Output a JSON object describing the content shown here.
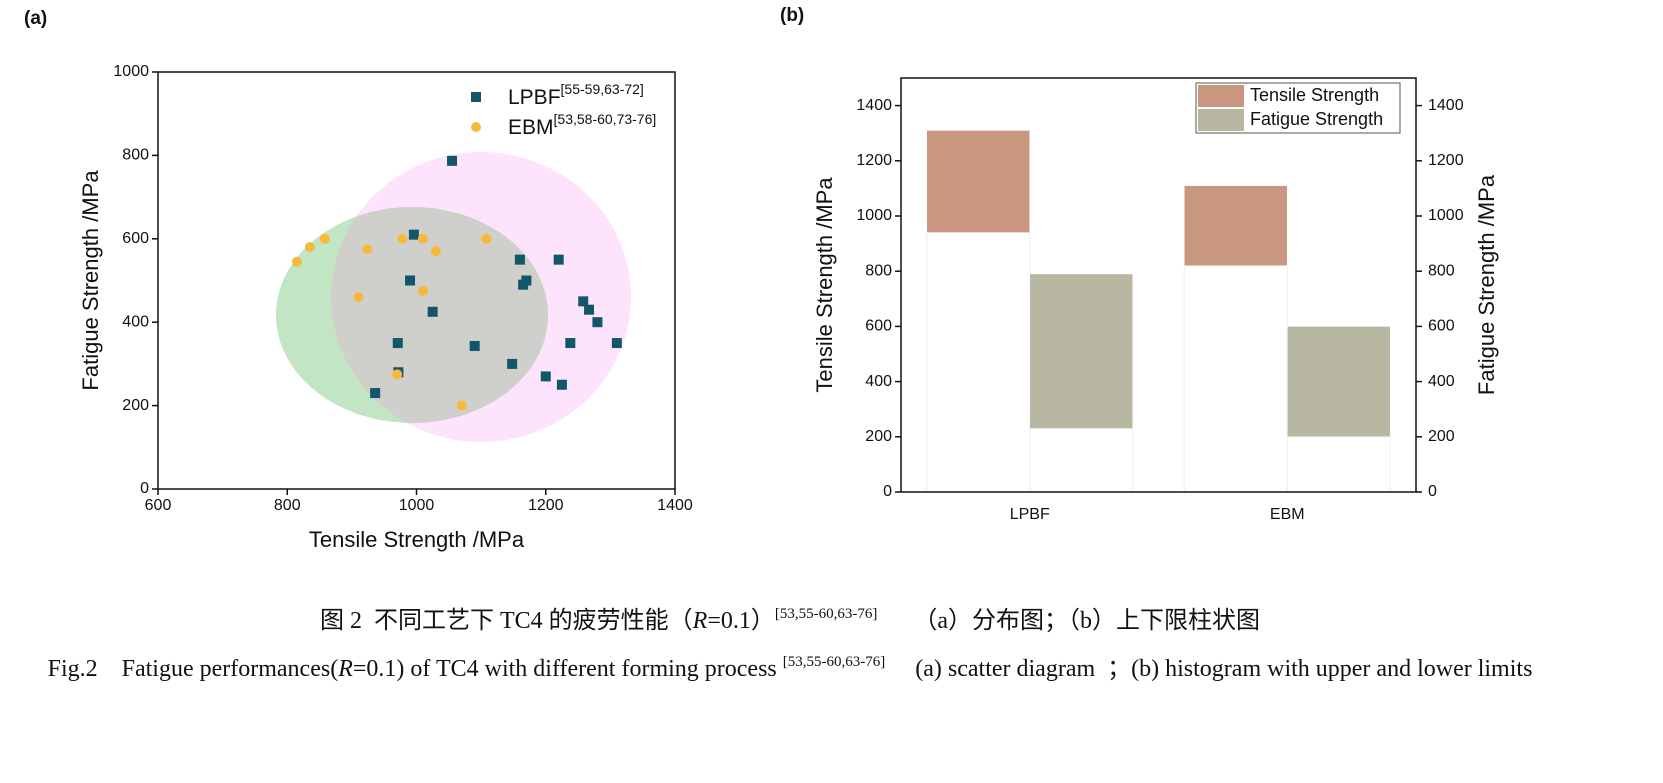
{
  "panel_labels": [
    "(a)",
    "(b)"
  ],
  "chart_data": [
    {
      "type": "scatter",
      "xlabel": "Tensile Strength /MPa",
      "ylabel": "Fatigue Strength /MPa",
      "xlim": [
        600,
        1400
      ],
      "xticks": [
        600,
        800,
        1000,
        1200,
        1400
      ],
      "ylim": [
        0,
        1000
      ],
      "yticks": [
        0,
        200,
        400,
        600,
        800,
        1000
      ],
      "series": [
        {
          "name": "LPBF",
          "refs": "[55-59,63-72]",
          "color": "#12566a",
          "marker": "square",
          "x": [
            1055,
            996,
            990,
            971,
            972,
            936,
            1025,
            1090,
            1160,
            1165,
            1170,
            1220,
            1148,
            1200,
            1225,
            1238,
            1258,
            1267,
            1280,
            1310
          ],
          "y": [
            787,
            610,
            500,
            350,
            280,
            230,
            425,
            343,
            550,
            490,
            500,
            550,
            300,
            270,
            250,
            350,
            450,
            430,
            400,
            350
          ]
        },
        {
          "name": "EBM",
          "refs": "[53,58-60,73-76]",
          "color": "#f7b93c",
          "marker": "circle",
          "x": [
            815,
            835,
            858,
            910,
            924,
            978,
            1010,
            1030,
            1010,
            1108,
            970,
            1070
          ],
          "y": [
            545,
            580,
            600,
            460,
            575,
            600,
            600,
            570,
            475,
            600,
            275,
            200
          ]
        }
      ]
    },
    {
      "type": "floating_bar",
      "ylabel": "Tensile Strength /MPa",
      "y2label": "Fatigue Strength /MPa",
      "categories": [
        "LPBF",
        "EBM"
      ],
      "ylim": [
        0,
        1500
      ],
      "yticks": [
        0,
        200,
        400,
        600,
        800,
        1000,
        1200,
        1400
      ],
      "y2lim": [
        0,
        1500
      ],
      "y2ticks": [
        0,
        200,
        400,
        600,
        800,
        1000,
        1200,
        1400
      ],
      "series": [
        {
          "name": "Tensile Strength",
          "color": "#c9977f",
          "low": [
            940,
            820
          ],
          "high": [
            1310,
            1110
          ]
        },
        {
          "name": "Fatigue Strength",
          "color": "#b8b8a2",
          "axis": "y2",
          "low": [
            230,
            200
          ],
          "high": [
            790,
            600
          ]
        }
      ]
    }
  ],
  "caption": {
    "zh": {
      "lead": "图 2  不同工艺下 TC4 的疲劳性能（",
      "var": "R",
      "cond": "=0.1）",
      "refs": "[53,55-60,63-76]",
      "rest": "      （a）分布图；（b）上下限柱状图"
    },
    "en": {
      "lead": "Fig.2    Fatigue performances(",
      "var": "R",
      "cond": "=0.1) of TC4 with different forming process ",
      "refs": "[53,55-60,63-76]",
      "rest": "     (a) scatter diagram  ；(b) histogram with upper and lower limits"
    }
  }
}
